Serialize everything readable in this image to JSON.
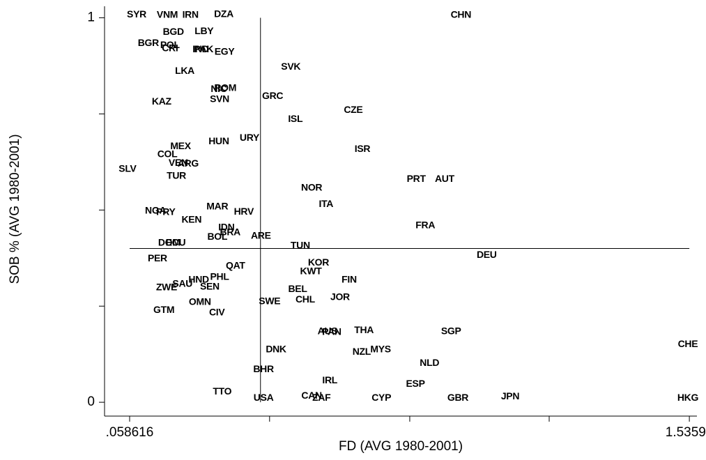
{
  "chart_data": {
    "type": "scatter",
    "x_label": "FD (AVG 1980-2001)",
    "y_label": "SOB % (AVG 1980-2001)",
    "xlim": [
      -0.0076,
      1.556
    ],
    "ylim": [
      -0.036,
      1.03
    ],
    "xticks": [
      {
        "value": 0.058616,
        "label": ".058616"
      },
      {
        "value": 1.53596,
        "label": "1.53596"
      }
    ],
    "xticks_minor": [
      0.428,
      0.798,
      1.166
    ],
    "yticks": [
      0,
      1
    ],
    "yticks_minor": [
      0.25,
      0.5,
      0.75
    ],
    "reference_lines": {
      "x": 0.404,
      "y": 0.4
    },
    "points": {
      "labels": [
        "SYR",
        "VNM",
        "IRN",
        "DZA",
        "CHN",
        "BGD",
        "LBY",
        "BGR",
        "POL",
        "CRI",
        "IND",
        "PAK",
        "EGY",
        "LKA",
        "SVK",
        "NIC",
        "ROM",
        "SVN",
        "GRC",
        "KAZ",
        "CZE",
        "ISL",
        "URY",
        "HUN",
        "MEX",
        "ISR",
        "COL",
        "VEN",
        "ARG",
        "SLV",
        "TUR",
        "PRT",
        "AUT",
        "NOR",
        "ITA",
        "MAR",
        "NGA",
        "PRY",
        "HRV",
        "KEN",
        "FRA",
        "IDN",
        "BRA",
        "BOL",
        "ARE",
        "DOM",
        "ECU",
        "TUN",
        "DEU",
        "PER",
        "QAT",
        "KOR",
        "KWT",
        "PHL",
        "HND",
        "FIN",
        "SAU",
        "ZWE",
        "SEN",
        "BEL",
        "JOR",
        "CHL",
        "SWE",
        "OMN",
        "GTM",
        "CIV",
        "AUS",
        "PAN",
        "THA",
        "SGP",
        "DNK",
        "MYS",
        "NZL",
        "CHE",
        "NLD",
        "BHR",
        "IRL",
        "ESP",
        "TTO",
        "CAN",
        "ZAF",
        "USA",
        "CYP",
        "GBR",
        "JPN",
        "HKG"
      ],
      "x": [
        0.077,
        0.158,
        0.219,
        0.307,
        0.933,
        0.174,
        0.255,
        0.108,
        0.165,
        0.165,
        0.246,
        0.254,
        0.309,
        0.204,
        0.484,
        0.294,
        0.311,
        0.296,
        0.436,
        0.143,
        0.649,
        0.496,
        0.375,
        0.294,
        0.193,
        0.673,
        0.158,
        0.187,
        0.213,
        0.053,
        0.182,
        0.815,
        0.89,
        0.539,
        0.577,
        0.29,
        0.127,
        0.154,
        0.36,
        0.222,
        0.839,
        0.314,
        0.324,
        0.29,
        0.405,
        0.163,
        0.18,
        0.509,
        1.001,
        0.132,
        0.338,
        0.557,
        0.537,
        0.296,
        0.241,
        0.638,
        0.198,
        0.156,
        0.27,
        0.502,
        0.614,
        0.522,
        0.428,
        0.244,
        0.149,
        0.289,
        0.581,
        0.592,
        0.677,
        0.907,
        0.445,
        0.721,
        0.671,
        1.532,
        0.85,
        0.412,
        0.587,
        0.813,
        0.303,
        0.539,
        0.565,
        0.412,
        0.723,
        0.925,
        1.063,
        1.532
      ],
      "y": [
        1.008,
        1.007,
        1.007,
        1.009,
        1.007,
        0.962,
        0.964,
        0.933,
        0.928,
        0.92,
        0.917,
        0.917,
        0.911,
        0.861,
        0.872,
        0.814,
        0.816,
        0.787,
        0.796,
        0.781,
        0.759,
        0.736,
        0.687,
        0.678,
        0.665,
        0.658,
        0.644,
        0.622,
        0.62,
        0.606,
        0.588,
        0.58,
        0.58,
        0.557,
        0.515,
        0.508,
        0.497,
        0.494,
        0.495,
        0.474,
        0.459,
        0.454,
        0.441,
        0.429,
        0.432,
        0.414,
        0.414,
        0.407,
        0.382,
        0.373,
        0.354,
        0.362,
        0.34,
        0.325,
        0.318,
        0.318,
        0.307,
        0.298,
        0.3,
        0.293,
        0.273,
        0.266,
        0.262,
        0.26,
        0.239,
        0.233,
        0.184,
        0.182,
        0.186,
        0.184,
        0.137,
        0.137,
        0.13,
        0.15,
        0.101,
        0.085,
        0.056,
        0.047,
        0.027,
        0.016,
        0.011,
        0.011,
        0.011,
        0.011,
        0.014,
        0.011
      ]
    }
  }
}
